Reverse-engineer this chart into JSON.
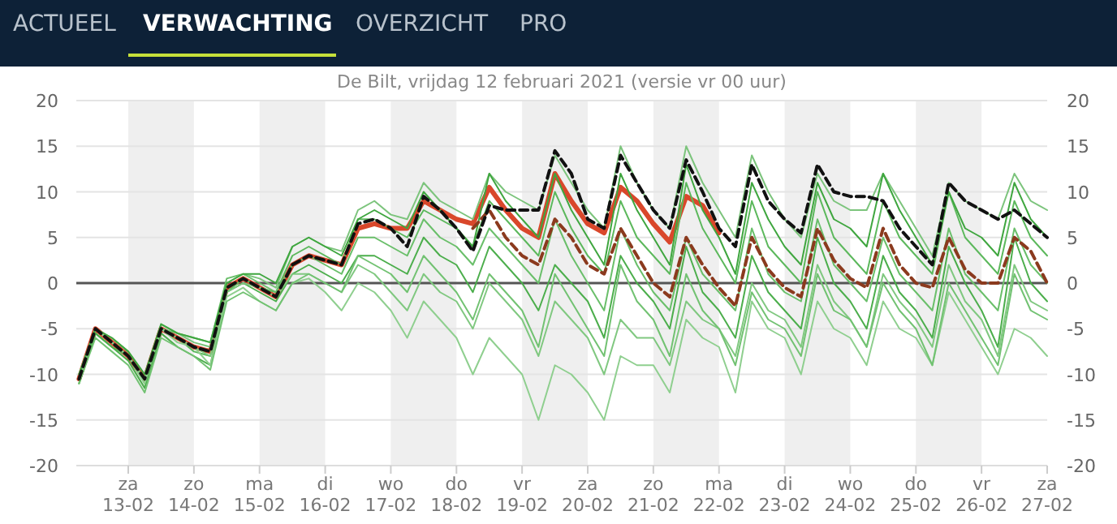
{
  "chart_data": {
    "type": "line",
    "title": "De Bilt, vrijdag 12 februari 2021 (versie vr 00 uur)",
    "annotations": [
      "ACTUEEL",
      "VERWACHTING",
      "OVERZICHT",
      "PRO"
    ],
    "x": [
      "2021-02-12T06:00",
      "2021-02-12T12:00",
      "2021-02-12T18:00",
      "2021-02-13T00:00",
      "2021-02-13T06:00",
      "2021-02-13T12:00",
      "2021-02-13T18:00",
      "2021-02-14T00:00",
      "2021-02-14T06:00",
      "2021-02-14T12:00",
      "2021-02-14T18:00",
      "2021-02-15T00:00",
      "2021-02-15T06:00",
      "2021-02-15T12:00",
      "2021-02-15T18:00",
      "2021-02-16T00:00",
      "2021-02-16T06:00",
      "2021-02-16T12:00",
      "2021-02-16T18:00",
      "2021-02-17T00:00",
      "2021-02-17T06:00",
      "2021-02-17T12:00",
      "2021-02-17T18:00",
      "2021-02-18T00:00",
      "2021-02-18T06:00",
      "2021-02-18T12:00",
      "2021-02-18T18:00",
      "2021-02-19T00:00",
      "2021-02-19T06:00",
      "2021-02-19T12:00",
      "2021-02-19T18:00",
      "2021-02-20T00:00",
      "2021-02-20T06:00",
      "2021-02-20T12:00",
      "2021-02-20T18:00",
      "2021-02-21T00:00",
      "2021-02-21T06:00",
      "2021-02-21T12:00",
      "2021-02-21T18:00",
      "2021-02-22T00:00",
      "2021-02-22T06:00",
      "2021-02-22T12:00",
      "2021-02-22T18:00",
      "2021-02-23T00:00",
      "2021-02-23T06:00",
      "2021-02-23T12:00",
      "2021-02-23T18:00",
      "2021-02-24T00:00",
      "2021-02-24T06:00",
      "2021-02-24T12:00",
      "2021-02-24T18:00",
      "2021-02-25T00:00",
      "2021-02-25T06:00",
      "2021-02-25T12:00",
      "2021-02-25T18:00",
      "2021-02-26T00:00",
      "2021-02-26T06:00",
      "2021-02-26T12:00",
      "2021-02-26T18:00",
      "2021-02-27T00:00"
    ],
    "xlim": [
      "2021-02-12T05:00",
      "2021-02-27T00:00"
    ],
    "xticks": [
      {
        "value": "2021-02-13",
        "label": "za 13-02"
      },
      {
        "value": "2021-02-14",
        "label": "zo 14-02"
      },
      {
        "value": "2021-02-15",
        "label": "ma 15-02"
      },
      {
        "value": "2021-02-16",
        "label": "di 16-02"
      },
      {
        "value": "2021-02-17",
        "label": "wo 17-02"
      },
      {
        "value": "2021-02-18",
        "label": "do 18-02"
      },
      {
        "value": "2021-02-19",
        "label": "vr 19-02"
      },
      {
        "value": "2021-02-20",
        "label": "za 20-02"
      },
      {
        "value": "2021-02-21",
        "label": "zo 21-02"
      },
      {
        "value": "2021-02-22",
        "label": "ma 22-02"
      },
      {
        "value": "2021-02-23",
        "label": "di 23-02"
      },
      {
        "value": "2021-02-24",
        "label": "wo 24-02"
      },
      {
        "value": "2021-02-25",
        "label": "do 25-02"
      },
      {
        "value": "2021-02-26",
        "label": "vr 26-02"
      },
      {
        "value": "2021-02-27",
        "label": "za 27-02"
      }
    ],
    "ylim": [
      -20,
      20
    ],
    "yticks": [
      -20,
      -15,
      -10,
      -5,
      0,
      5,
      10,
      15,
      20
    ],
    "y2lim": [
      -20,
      20
    ],
    "y2ticks": [
      -20,
      -15,
      -10,
      -5,
      0,
      5,
      10,
      15,
      20
    ],
    "grid": "y",
    "bands": [
      {
        "axis": "x",
        "from": "2021-02-13",
        "to": "2021-02-14",
        "color": "#efefef"
      },
      {
        "axis": "x",
        "from": "2021-02-15",
        "to": "2021-02-16",
        "color": "#efefef"
      },
      {
        "axis": "x",
        "from": "2021-02-17",
        "to": "2021-02-18",
        "color": "#efefef"
      },
      {
        "axis": "x",
        "from": "2021-02-19",
        "to": "2021-02-20",
        "color": "#efefef"
      },
      {
        "axis": "x",
        "from": "2021-02-21",
        "to": "2021-02-22",
        "color": "#efefef"
      },
      {
        "axis": "x",
        "from": "2021-02-23",
        "to": "2021-02-24",
        "color": "#efefef"
      },
      {
        "axis": "x",
        "from": "2021-02-25",
        "to": "2021-02-26",
        "color": "#efefef"
      }
    ],
    "ref_lines": [
      {
        "axis": "y",
        "value": 0,
        "color": "#555555"
      }
    ],
    "series": [
      {
        "color": "#7cc47c",
        "values": [
          -10,
          -5,
          -6.5,
          -8,
          -10.5,
          -4.5,
          -5.5,
          -6.5,
          -7,
          0,
          1,
          0.5,
          -0.5,
          4,
          5,
          4,
          3.5,
          8,
          9,
          7.5,
          7,
          11,
          9,
          8,
          7,
          12,
          10,
          9,
          8,
          14,
          11,
          8,
          6,
          15,
          11,
          8,
          6,
          15,
          11,
          8,
          5,
          14,
          10,
          7,
          5,
          12,
          9,
          8,
          8,
          12,
          9,
          6,
          3,
          11,
          9,
          8,
          7,
          12,
          9,
          8
        ]
      },
      {
        "color": "#5cb85c",
        "values": [
          -11,
          -5.5,
          -7,
          -8,
          -11,
          -5,
          -6,
          -7.5,
          -8,
          -1,
          0.5,
          -0.5,
          -1,
          3,
          4,
          3,
          2,
          7,
          7,
          6,
          5,
          8,
          7,
          6,
          4,
          9,
          7,
          5,
          3,
          10,
          6,
          3,
          1,
          9,
          5,
          3,
          1,
          11,
          6,
          3,
          0,
          9,
          4,
          2,
          0,
          10,
          5,
          3,
          1,
          9,
          5,
          3,
          1,
          10,
          5,
          3,
          1,
          9,
          5,
          3
        ]
      },
      {
        "color": "#6abf6a",
        "values": [
          -10.5,
          -5,
          -6,
          -7.5,
          -10,
          -5,
          -5.5,
          -6,
          -6.5,
          0.5,
          1,
          0,
          -1,
          2,
          3,
          2,
          1,
          5,
          5,
          4,
          3,
          7,
          5,
          4,
          2,
          6,
          4,
          2,
          0,
          7,
          3,
          0,
          -3,
          6,
          2,
          -1,
          -3,
          5,
          1,
          -1,
          -3,
          6,
          1,
          -1,
          -2,
          7,
          2,
          0,
          -2,
          5,
          1,
          -1,
          -3,
          6,
          1,
          -1,
          -3,
          6,
          2,
          0
        ]
      },
      {
        "color": "#4cae4c",
        "values": [
          -11,
          -5.5,
          -7,
          -8.5,
          -11.5,
          -5.5,
          -7,
          -8,
          -9,
          -1,
          0,
          -1,
          -2,
          1,
          2,
          1,
          0,
          3,
          3,
          2,
          1,
          5,
          3,
          2,
          -1,
          4,
          2,
          0,
          -3,
          2,
          0,
          -2,
          -6,
          3,
          0,
          -2,
          -5,
          4,
          -1,
          -3,
          -6,
          3,
          -1,
          -3,
          -5,
          5,
          0,
          -2,
          -5,
          3,
          -1,
          -3,
          -6,
          4,
          0,
          -3,
          -7,
          5,
          0,
          -2
        ]
      },
      {
        "color": "#80c880",
        "values": [
          -10,
          -5,
          -6.5,
          -8,
          -10.5,
          -5,
          -6,
          -7,
          -8,
          -1,
          0,
          -0.5,
          -1.5,
          1,
          1,
          0,
          -1,
          2,
          1,
          -1,
          -3,
          1,
          -1,
          -2,
          -5,
          0,
          -2,
          -4,
          -8,
          -2,
          -4,
          -6,
          -10,
          -4,
          -6,
          -6,
          -9,
          -2,
          -4,
          -5,
          -8,
          0,
          -3,
          -4,
          -7,
          2,
          -2,
          -4,
          -7,
          1,
          -2,
          -4,
          -7,
          2,
          -2,
          -4,
          -8,
          2,
          -2,
          -3
        ]
      },
      {
        "color": "#8fcf8f",
        "values": [
          -10.5,
          -5,
          -6.5,
          -8,
          -11,
          -5,
          -6.5,
          -7,
          -9,
          -1.5,
          -0.5,
          -2,
          -3,
          0,
          0.5,
          -1,
          -3,
          0,
          -1,
          -3,
          -6,
          -2,
          -4,
          -6,
          -10,
          -6,
          -8,
          -10,
          -15,
          -9,
          -10,
          -12,
          -15,
          -8,
          -9,
          -9,
          -12,
          -4,
          -6,
          -7,
          -12,
          -2,
          -5,
          -6,
          -10,
          -2,
          -5,
          -6,
          -9,
          -2,
          -5,
          -6,
          -9,
          -1,
          -4,
          -7,
          -10,
          -5,
          -6,
          -8
        ]
      },
      {
        "color": "#3fa63f",
        "values": [
          -10,
          -5,
          -6,
          -7.5,
          -10,
          -4.5,
          -5.5,
          -6,
          -6.5,
          0,
          1,
          1,
          0,
          4,
          5,
          4,
          3,
          7,
          8,
          7,
          6,
          10,
          8,
          6,
          4,
          12,
          9,
          7,
          5,
          12,
          8,
          5,
          2,
          12,
          8,
          5,
          2,
          13,
          8,
          5,
          1,
          11,
          7,
          4,
          2,
          11,
          7,
          6,
          4,
          12,
          8,
          5,
          2,
          10,
          6,
          5,
          3,
          11,
          7,
          5
        ]
      },
      {
        "color": "#72c272",
        "values": [
          -11,
          -6,
          -7.5,
          -9,
          -12,
          -6,
          -7,
          -8,
          -9.5,
          -2,
          -1,
          -2,
          -3,
          0,
          1,
          0,
          -1,
          3,
          2,
          1,
          -1,
          3,
          1,
          -1,
          -4,
          1,
          -1,
          -3,
          -7,
          1,
          -2,
          -5,
          -8,
          2,
          -2,
          -4,
          -8,
          1,
          -3,
          -5,
          -9,
          -1,
          -4,
          -5,
          -8,
          1,
          -3,
          -4,
          -7,
          0,
          -3,
          -5,
          -9,
          0,
          -3,
          -6,
          -9,
          1,
          -3,
          -4
        ]
      },
      {
        "color": "#8b3a1e",
        "line_style": "dashed",
        "values": [
          null,
          null,
          null,
          null,
          null,
          null,
          null,
          null,
          null,
          null,
          null,
          null,
          null,
          null,
          null,
          null,
          null,
          null,
          null,
          null,
          null,
          null,
          null,
          null,
          6,
          8,
          5,
          3,
          2,
          7,
          5,
          2,
          1,
          6,
          3,
          0,
          -1.5,
          5,
          2,
          -0.5,
          -2.5,
          5,
          1.5,
          -0.5,
          -1.5,
          6,
          2.5,
          0.5,
          -0.5,
          6,
          2,
          0,
          -0.5,
          5,
          1.5,
          0,
          0,
          5,
          3.5,
          0
        ]
      },
      {
        "color": "#111111",
        "line_style": "dashed",
        "values": [
          -10.5,
          -5,
          -6.5,
          -8,
          -10.5,
          -5,
          -6,
          -7,
          -7.5,
          -0.5,
          0.5,
          -0.5,
          -1.5,
          2,
          3,
          2.5,
          2,
          6.5,
          7,
          6,
          4,
          9.5,
          8,
          6,
          3.5,
          8.5,
          8,
          8,
          8,
          14.5,
          12,
          7,
          6,
          14,
          11,
          8,
          6,
          13.5,
          10,
          6,
          4,
          13,
          9,
          7,
          5.5,
          13,
          10,
          9.5,
          9.5,
          9,
          6,
          4,
          2,
          11,
          9,
          8,
          7,
          8,
          6.5,
          5
        ]
      },
      {
        "color": "#d9472b",
        "line_style": "solid",
        "values": [
          -10.5,
          -5,
          -6.5,
          -8,
          -10.5,
          -5,
          -6,
          -7,
          -7.5,
          -0.5,
          0.5,
          -0.5,
          -1.5,
          2,
          3,
          2.5,
          2,
          6,
          6.5,
          6,
          6,
          9,
          8,
          7,
          6.5,
          10.5,
          8,
          6,
          5,
          12,
          9,
          6.5,
          5.5,
          10.5,
          9,
          6.5,
          4.5,
          9.5,
          8.5,
          5.5,
          null,
          null,
          null,
          null,
          null,
          null,
          null,
          null,
          null,
          null,
          null,
          null,
          null,
          null,
          null,
          null,
          null,
          null,
          null,
          null
        ]
      }
    ]
  }
}
